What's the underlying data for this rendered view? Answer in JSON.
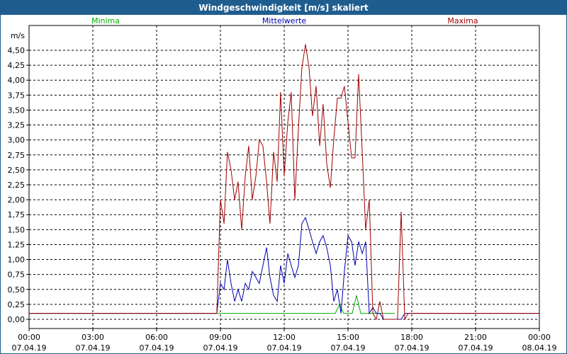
{
  "window": {
    "title": "Windgeschwindigkeit [m/s] skaliert"
  },
  "colors": {
    "title_bg": "#1f5d8f",
    "min": "#00b000",
    "mean": "#0000b0",
    "max": "#a00000",
    "grid": "#000000"
  },
  "chart_data": {
    "type": "line",
    "title": "Windgeschwindigkeit [m/s] skaliert",
    "ylabel": "m/s",
    "ylim": [
      0,
      4.75
    ],
    "y_ticks": [
      "0,00",
      "0,25",
      "0,50",
      "0,75",
      "1,00",
      "1,25",
      "1,50",
      "1,75",
      "2,00",
      "2,25",
      "2,50",
      "2,75",
      "3,00",
      "3,25",
      "3,50",
      "3,75",
      "4,00",
      "4,25",
      "4,50"
    ],
    "x_ticks": [
      {
        "time": "00:00",
        "date": "07.04.19"
      },
      {
        "time": "03:00",
        "date": "07.04.19"
      },
      {
        "time": "06:00",
        "date": "07.04.19"
      },
      {
        "time": "09:00",
        "date": "07.04.19"
      },
      {
        "time": "12:00",
        "date": "07.04.19"
      },
      {
        "time": "15:00",
        "date": "07.04.19"
      },
      {
        "time": "18:00",
        "date": "07.04.19"
      },
      {
        "time": "21:00",
        "date": "07.04.19"
      },
      {
        "time": "00:00",
        "date": "08.04.19"
      }
    ],
    "grid": true,
    "legend": [
      "Minima",
      "Mittelwerte",
      "Maxima"
    ],
    "series": [
      {
        "name": "Minima",
        "points": [
          [
            0,
            0.1
          ],
          [
            14.2,
            0.1
          ],
          [
            14.4,
            0.1
          ],
          [
            14.6,
            0.25
          ],
          [
            14.8,
            0.1
          ],
          [
            15.2,
            0.1
          ],
          [
            15.4,
            0.4
          ],
          [
            15.6,
            0.1
          ],
          [
            16.8,
            0.1
          ],
          [
            17.2,
            0.1
          ]
        ]
      },
      {
        "name": "Mittelwerte",
        "points": [
          [
            0,
            0.1
          ],
          [
            8.83,
            0.1
          ],
          [
            9.0,
            0.6
          ],
          [
            9.17,
            0.5
          ],
          [
            9.33,
            1.0
          ],
          [
            9.5,
            0.6
          ],
          [
            9.67,
            0.3
          ],
          [
            9.83,
            0.5
          ],
          [
            10.0,
            0.3
          ],
          [
            10.17,
            0.6
          ],
          [
            10.33,
            0.5
          ],
          [
            10.5,
            0.8
          ],
          [
            10.67,
            0.7
          ],
          [
            10.83,
            0.6
          ],
          [
            11.0,
            0.9
          ],
          [
            11.17,
            1.2
          ],
          [
            11.33,
            0.7
          ],
          [
            11.5,
            0.4
          ],
          [
            11.67,
            0.3
          ],
          [
            11.83,
            0.9
          ],
          [
            12.0,
            0.6
          ],
          [
            12.17,
            1.1
          ],
          [
            12.33,
            0.9
          ],
          [
            12.5,
            0.7
          ],
          [
            12.67,
            0.9
          ],
          [
            12.83,
            1.6
          ],
          [
            13.0,
            1.7
          ],
          [
            13.17,
            1.5
          ],
          [
            13.33,
            1.3
          ],
          [
            13.5,
            1.1
          ],
          [
            13.67,
            1.3
          ],
          [
            13.83,
            1.4
          ],
          [
            14.0,
            1.2
          ],
          [
            14.17,
            0.9
          ],
          [
            14.33,
            0.3
          ],
          [
            14.5,
            0.5
          ],
          [
            14.67,
            0.1
          ],
          [
            14.83,
            0.8
          ],
          [
            15.0,
            1.4
          ],
          [
            15.17,
            1.3
          ],
          [
            15.33,
            0.9
          ],
          [
            15.5,
            1.3
          ],
          [
            15.67,
            1.1
          ],
          [
            15.83,
            1.3
          ],
          [
            16.0,
            0.1
          ],
          [
            16.17,
            0.2
          ],
          [
            16.33,
            0.1
          ],
          [
            16.5,
            0.1
          ],
          [
            16.67,
            0.0
          ],
          [
            17.5,
            0.0
          ],
          [
            17.67,
            0.1
          ],
          [
            24,
            0.1
          ]
        ]
      },
      {
        "name": "Maxima",
        "points": [
          [
            0,
            0.1
          ],
          [
            8.83,
            0.1
          ],
          [
            9.0,
            2.0
          ],
          [
            9.17,
            1.6
          ],
          [
            9.33,
            2.8
          ],
          [
            9.5,
            2.5
          ],
          [
            9.67,
            2.0
          ],
          [
            9.83,
            2.3
          ],
          [
            10.0,
            1.5
          ],
          [
            10.17,
            2.4
          ],
          [
            10.33,
            2.9
          ],
          [
            10.5,
            2.0
          ],
          [
            10.67,
            2.4
          ],
          [
            10.83,
            3.0
          ],
          [
            11.0,
            2.9
          ],
          [
            11.17,
            2.3
          ],
          [
            11.33,
            1.6
          ],
          [
            11.5,
            2.8
          ],
          [
            11.67,
            2.3
          ],
          [
            11.83,
            3.8
          ],
          [
            12.0,
            2.4
          ],
          [
            12.17,
            3.3
          ],
          [
            12.33,
            3.8
          ],
          [
            12.5,
            2.0
          ],
          [
            12.67,
            3.2
          ],
          [
            12.83,
            4.2
          ],
          [
            13.0,
            4.6
          ],
          [
            13.17,
            4.2
          ],
          [
            13.33,
            3.4
          ],
          [
            13.5,
            3.9
          ],
          [
            13.67,
            2.9
          ],
          [
            13.83,
            3.6
          ],
          [
            14.0,
            2.6
          ],
          [
            14.17,
            2.2
          ],
          [
            14.33,
            3.0
          ],
          [
            14.5,
            3.7
          ],
          [
            14.67,
            3.7
          ],
          [
            14.83,
            3.9
          ],
          [
            15.0,
            3.3
          ],
          [
            15.17,
            2.7
          ],
          [
            15.33,
            2.7
          ],
          [
            15.5,
            4.1
          ],
          [
            15.67,
            2.8
          ],
          [
            15.83,
            1.5
          ],
          [
            16.0,
            2.0
          ],
          [
            16.17,
            0.1
          ],
          [
            16.33,
            0.0
          ],
          [
            16.5,
            0.3
          ],
          [
            16.67,
            0.0
          ],
          [
            17.33,
            0.0
          ],
          [
            17.5,
            1.8
          ],
          [
            17.67,
            0.0
          ],
          [
            17.83,
            0.1
          ],
          [
            24,
            0.1
          ]
        ]
      }
    ]
  }
}
